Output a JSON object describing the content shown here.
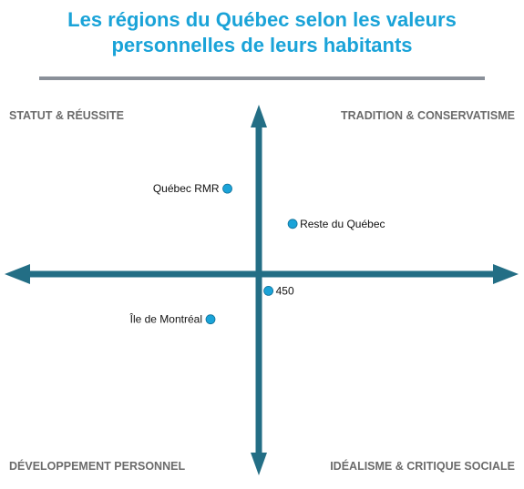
{
  "title_line1": "Les régions du Québec selon les valeurs",
  "title_line2": "personnelles de leurs habitants",
  "quadrants": {
    "top_left": "STATUT & RÉUSSITE",
    "top_right": "TRADITION  & CONSERVATISME",
    "bottom_left": "DÉVELOPPEMENT PERSONNEL",
    "bottom_right": "IDÉALISME & CRITIQUE SOCIALE"
  },
  "colors": {
    "title": "#1aa3d8",
    "axis": "#236e85",
    "point": "#1aa3d8",
    "rule": "#8a9099",
    "quadrant_text": "#6b6b6b"
  },
  "chart_data": {
    "type": "scatter",
    "xlim": [
      -1,
      1
    ],
    "ylim": [
      -1,
      1
    ],
    "points": [
      {
        "label": "Québec RMR",
        "x": -0.13,
        "y": 0.51,
        "label_side": "left"
      },
      {
        "label": "Reste du Québec",
        "x": 0.14,
        "y": 0.3,
        "label_side": "right"
      },
      {
        "label": "450",
        "x": 0.04,
        "y": -0.1,
        "label_side": "right"
      },
      {
        "label": "Île de Montréal",
        "x": -0.2,
        "y": -0.27,
        "label_side": "left"
      }
    ]
  }
}
